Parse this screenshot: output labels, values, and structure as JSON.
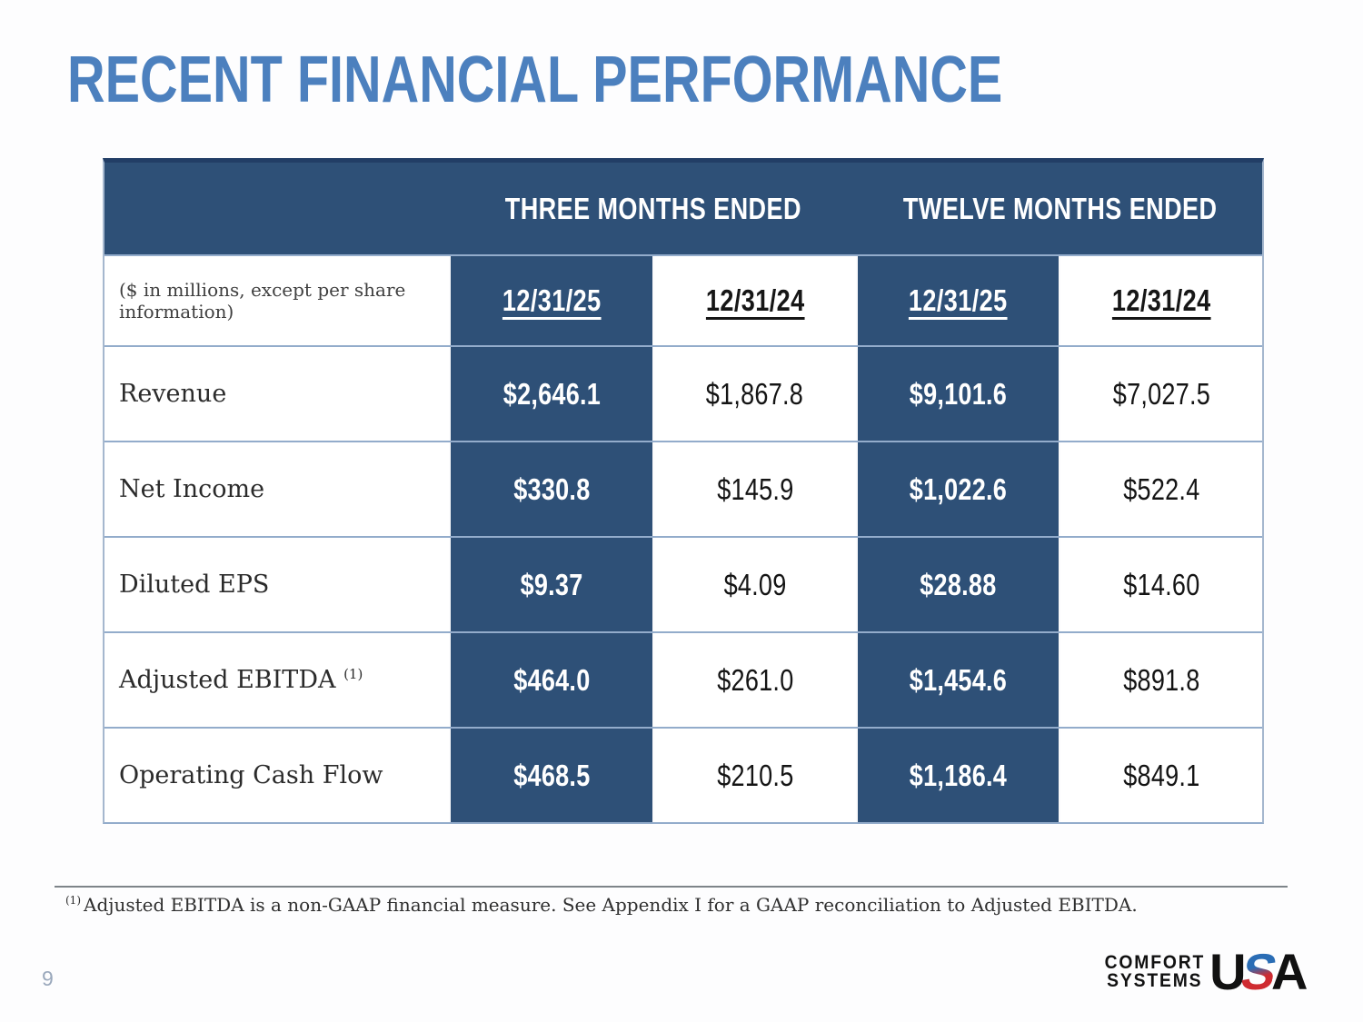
{
  "slide": {
    "title": "RECENT FINANCIAL PERFORMANCE",
    "page_number": "9",
    "footnote_marker": "(1)",
    "footnote_text": "Adjusted EBITDA is a non-GAAP financial measure. See Appendix I for a GAAP reconciliation to Adjusted EBITDA."
  },
  "table": {
    "units_note": "($ in millions, except per share information)",
    "group_headers": [
      {
        "label": "THREE MONTHS ENDED"
      },
      {
        "label": "TWELVE MONTHS ENDED"
      }
    ],
    "column_headers": [
      "12/31/25",
      "12/31/24",
      "12/31/25",
      "12/31/24"
    ],
    "rows": [
      {
        "label": "Revenue",
        "values": [
          "$2,646.1",
          "$1,867.8",
          "$9,101.6",
          "$7,027.5"
        ]
      },
      {
        "label": "Net Income",
        "values": [
          "$330.8",
          "$145.9",
          "$1,022.6",
          "$522.4"
        ]
      },
      {
        "label": "Diluted EPS",
        "values": [
          "$9.37",
          "$4.09",
          "$28.88",
          "$14.60"
        ]
      },
      {
        "label": "Adjusted EBITDA",
        "label_note": "(1)",
        "values": [
          "$464.0",
          "$261.0",
          "$1,454.6",
          "$891.8"
        ]
      },
      {
        "label": "Operating Cash Flow",
        "values": [
          "$468.5",
          "$210.5",
          "$1,186.4",
          "$849.1"
        ]
      }
    ]
  },
  "logo": {
    "line1": "COMFORT",
    "line2": "SYSTEMS",
    "usa_u": "U",
    "usa_s": "S",
    "usa_a": "A"
  },
  "colors": {
    "navy_cell": "#2e5077",
    "title_blue": "#4c80be",
    "row_separator": "#93accb",
    "table_top_border": "#223e66",
    "logo_blue": "#2a6db5",
    "logo_red": "#cf2b31"
  }
}
